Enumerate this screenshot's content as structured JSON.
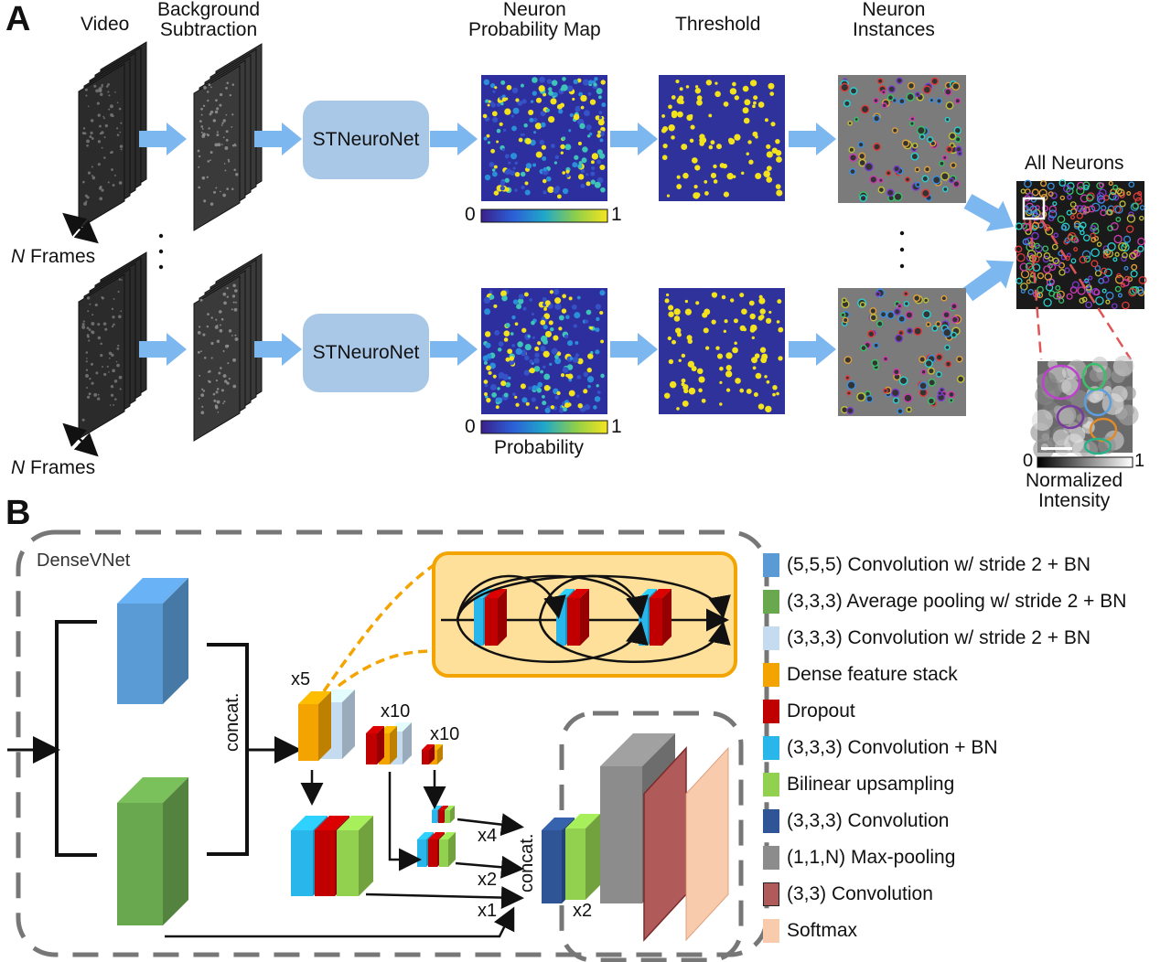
{
  "panel_a": {
    "letter": "A",
    "headers": {
      "video": "Video",
      "background_subtraction": "Background\nSubtraction",
      "probability_map": "Neuron\nProbability Map",
      "threshold": "Threshold",
      "instances": "Neuron\nInstances"
    },
    "frames_label_n": "N",
    "frames_label_rest": " Frames",
    "network_label": "STNeuroNet",
    "colorbar_min": "0",
    "colorbar_max": "1",
    "probability_label": "Probability",
    "all_neurons": "All Neurons",
    "intensity_min": "0",
    "intensity_max": "1",
    "intensity_label": "Normalized\nIntensity"
  },
  "panel_b": {
    "letter": "B",
    "densevnet": "DenseVNet",
    "concat": "concat.",
    "x5": "x5",
    "x10a": "x10",
    "x10b": "x10",
    "x4": "x4",
    "x2a": "x2",
    "x1": "x1",
    "x2b": "x2"
  },
  "legend": [
    {
      "label": "(5,5,5) Convolution w/ stride 2 + BN",
      "color": "#5b9bd5"
    },
    {
      "label": "(3,3,3) Average pooling w/ stride 2 + BN",
      "color": "#6aa84f"
    },
    {
      "label": "(3,3,3) Convolution w/ stride 2 + BN",
      "color": "#c5dcf0"
    },
    {
      "label": "Dense feature stack",
      "color": "#f4a400"
    },
    {
      "label": "Dropout",
      "color": "#c00000"
    },
    {
      "label": "(3,3,3) Convolution + BN",
      "color": "#29b6ea"
    },
    {
      "label": "Bilinear upsampling",
      "color": "#92d050"
    },
    {
      "label": "(3,3,3) Convolution",
      "color": "#2f5597"
    },
    {
      "label": "(1,1,N) Max-pooling",
      "color": "#8c8c8c"
    },
    {
      "label": "(3,3) Convolution",
      "color": "#b05a5a"
    },
    {
      "label": "Softmax",
      "color": "#f8cbad"
    }
  ]
}
